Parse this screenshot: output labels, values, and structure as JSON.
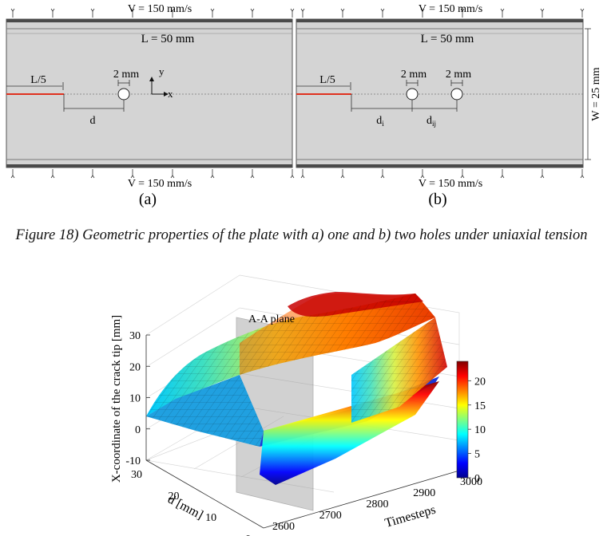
{
  "figure18": {
    "panel_a": {
      "velocity_top": "V = 150 mm/s",
      "velocity_bottom": "V = 150 mm/s",
      "length": "L = 50 mm",
      "crack_length": "L/5",
      "hole_size": "2 mm",
      "distance": "d",
      "axis_y": "y",
      "axis_x": "x",
      "label": "(a)"
    },
    "panel_b": {
      "velocity_top": "V = 150 mm/s",
      "velocity_bottom": "V = 150 mm/s",
      "length": "L = 50 mm",
      "crack_length": "L/5",
      "hole1_size": "2 mm",
      "hole2_size": "2 mm",
      "distance1": "d",
      "distance1_sub": "i",
      "distance2": "d",
      "distance2_sub": "ij",
      "width": "W = 25 mm",
      "label": "(b)"
    },
    "caption": "Figure 18) Geometric properties of the plate with a) one and b) two holes under uniaxial tension",
    "colors": {
      "plate": "#d4d4d4",
      "crack": "#e0301e",
      "grips": "#4a4a4a"
    }
  },
  "plot": {
    "plane_label": "A-A plane",
    "colormap": "jet",
    "colorbar": {
      "min": 0,
      "max": 24,
      "ticks": [
        "0",
        "5",
        "10",
        "15",
        "20"
      ]
    }
  },
  "chart_data": {
    "type": "surface",
    "x": {
      "label": "Timesteps",
      "ticks": [
        "2600",
        "2700",
        "2800",
        "2900",
        "3000"
      ],
      "range": [
        2600,
        3000
      ]
    },
    "y": {
      "label": "d [mm]",
      "ticks": [
        "0",
        "10",
        "20",
        "30"
      ],
      "range": [
        0,
        30
      ]
    },
    "z": {
      "label": "X-coordinate of the crack tip [mm]",
      "ticks": [
        "-10",
        "0",
        "10",
        "20",
        "30"
      ],
      "range": [
        -10,
        30
      ]
    },
    "grid": true
  }
}
